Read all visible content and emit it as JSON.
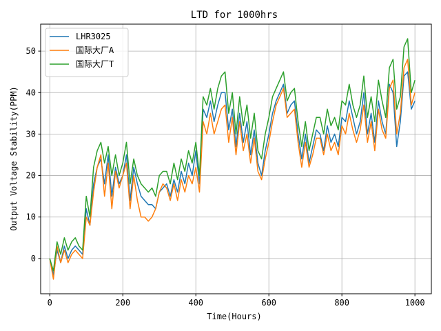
{
  "chart_data": {
    "type": "line",
    "title": "LTD for 1000hrs",
    "xlabel": "Time(Hours)",
    "ylabel": "Output Voltage Stability(PPM)",
    "xlim": [
      -25,
      1045
    ],
    "ylim": [
      -8.5,
      56.5
    ],
    "xticks": [
      0,
      200,
      400,
      600,
      800,
      1000
    ],
    "yticks": [
      0,
      10,
      20,
      30,
      40,
      50
    ],
    "grid": true,
    "legend_position": "upper left",
    "x": [
      0,
      10,
      20,
      30,
      40,
      50,
      60,
      70,
      80,
      90,
      100,
      110,
      120,
      130,
      140,
      150,
      160,
      170,
      180,
      190,
      200,
      210,
      220,
      230,
      240,
      250,
      260,
      270,
      280,
      290,
      300,
      310,
      320,
      330,
      340,
      350,
      360,
      370,
      380,
      390,
      400,
      410,
      420,
      430,
      440,
      450,
      460,
      470,
      480,
      490,
      500,
      510,
      520,
      530,
      540,
      550,
      560,
      570,
      580,
      590,
      600,
      610,
      620,
      630,
      640,
      650,
      660,
      670,
      680,
      690,
      700,
      710,
      720,
      730,
      740,
      750,
      760,
      770,
      780,
      790,
      800,
      810,
      820,
      830,
      840,
      850,
      860,
      870,
      880,
      890,
      900,
      910,
      920,
      930,
      940,
      950,
      960,
      970,
      980,
      990,
      1000
    ],
    "series": [
      {
        "name": "LHR3025",
        "color": "#1f77b4",
        "values": [
          0,
          -4,
          2,
          -1,
          3,
          0,
          2,
          3,
          2,
          1,
          12,
          8,
          18,
          22,
          24,
          18,
          25,
          15,
          22,
          18,
          20,
          25,
          14,
          22,
          18,
          15,
          14,
          13,
          13,
          12,
          16,
          17,
          18,
          15,
          19,
          16,
          21,
          18,
          23,
          20,
          26,
          18,
          36,
          34,
          38,
          33,
          37,
          40,
          40,
          31,
          36,
          27,
          35,
          28,
          33,
          25,
          31,
          23,
          20,
          26,
          30,
          35,
          38,
          40,
          42,
          35,
          37,
          38,
          30,
          24,
          30,
          23,
          27,
          31,
          30,
          26,
          32,
          28,
          30,
          27,
          34,
          33,
          38,
          34,
          30,
          33,
          40,
          30,
          35,
          28,
          38,
          33,
          30,
          42,
          40,
          27,
          33,
          44,
          45,
          36,
          38
        ]
      },
      {
        "name": "国际大厂A",
        "color": "#ff7f0e",
        "values": [
          0,
          -5,
          3,
          -1,
          2,
          -1,
          1,
          2,
          1,
          0,
          10,
          8,
          16,
          22,
          25,
          15,
          23,
          12,
          21,
          17,
          20,
          23,
          12,
          20,
          14,
          10,
          10,
          9,
          10,
          12,
          16,
          18,
          17,
          14,
          18,
          14,
          19,
          16,
          20,
          18,
          22,
          16,
          33,
          30,
          35,
          30,
          33,
          36,
          37,
          28,
          34,
          25,
          33,
          26,
          30,
          23,
          29,
          21,
          19,
          24,
          28,
          33,
          37,
          39,
          41,
          34,
          35,
          36,
          28,
          22,
          28,
          22,
          25,
          29,
          29,
          25,
          30,
          26,
          28,
          25,
          32,
          30,
          35,
          31,
          28,
          31,
          37,
          28,
          33,
          26,
          36,
          31,
          29,
          41,
          43,
          30,
          35,
          46,
          48,
          37,
          40
        ]
      },
      {
        "name": "国际大厂T",
        "color": "#2ca02c",
        "values": [
          0,
          -3,
          4,
          1,
          5,
          2,
          4,
          5,
          3,
          2,
          15,
          10,
          22,
          26,
          28,
          23,
          27,
          20,
          25,
          20,
          23,
          28,
          18,
          24,
          20,
          18,
          17,
          16,
          17,
          15,
          20,
          21,
          21,
          18,
          23,
          19,
          24,
          21,
          26,
          23,
          28,
          20,
          39,
          37,
          41,
          36,
          41,
          44,
          45,
          35,
          40,
          30,
          39,
          32,
          37,
          29,
          35,
          26,
          24,
          30,
          34,
          39,
          41,
          43,
          45,
          38,
          40,
          41,
          33,
          27,
          33,
          26,
          30,
          34,
          34,
          30,
          36,
          32,
          34,
          31,
          38,
          37,
          42,
          37,
          34,
          37,
          44,
          34,
          39,
          33,
          43,
          38,
          34,
          46,
          48,
          36,
          39,
          51,
          53,
          40,
          43
        ]
      }
    ]
  }
}
